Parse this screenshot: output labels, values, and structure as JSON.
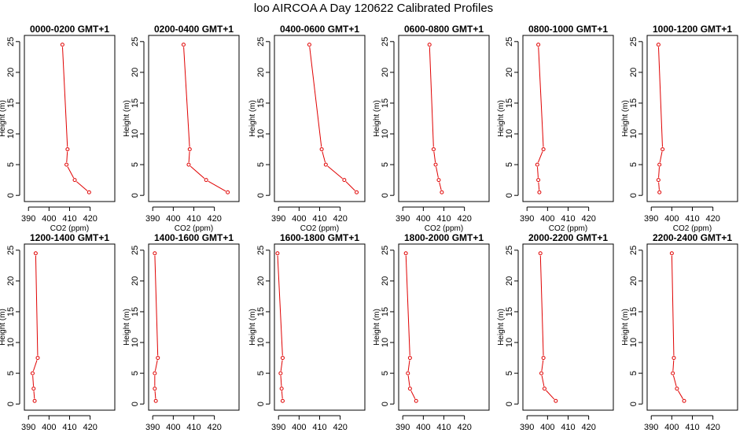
{
  "title": "loo AIRCOA A  Day 120622  Calibrated Profiles",
  "colors": {
    "series": "#e00000",
    "axis": "#000000"
  },
  "chart_data": [
    {
      "type": "line",
      "title": "0000-0200 GMT+1",
      "xlabel": "CO2 (ppm)",
      "ylabel": "Height (m)",
      "xlim": [
        388,
        432
      ],
      "ylim": [
        -1,
        26
      ],
      "xticks": [
        390,
        400,
        410,
        420
      ],
      "yticks": [
        0,
        5,
        10,
        15,
        20,
        25
      ],
      "series": [
        {
          "x": [
            419.5,
            412.5,
            408.5,
            409.0,
            406.5
          ],
          "y": [
            0.5,
            2.5,
            5.0,
            7.5,
            24.5
          ]
        }
      ]
    },
    {
      "type": "line",
      "title": "0200-0400 GMT+1",
      "xlabel": "CO2 (ppm)",
      "ylabel": "Height (m)",
      "xlim": [
        388,
        432
      ],
      "ylim": [
        -1,
        26
      ],
      "xticks": [
        390,
        400,
        410,
        420
      ],
      "yticks": [
        0,
        5,
        10,
        15,
        20,
        25
      ],
      "series": [
        {
          "x": [
            426.5,
            416.0,
            407.5,
            408.0,
            405.0
          ],
          "y": [
            0.5,
            2.5,
            5.0,
            7.5,
            24.5
          ]
        }
      ]
    },
    {
      "type": "line",
      "title": "0400-0600 GMT+1",
      "xlabel": "CO2 (ppm)",
      "ylabel": "Height (m)",
      "xlim": [
        388,
        432
      ],
      "ylim": [
        -1,
        26
      ],
      "xticks": [
        390,
        400,
        410,
        420
      ],
      "yticks": [
        0,
        5,
        10,
        15,
        20,
        25
      ],
      "series": [
        {
          "x": [
            428.0,
            422.0,
            413.0,
            411.0,
            405.0
          ],
          "y": [
            0.5,
            2.5,
            5.0,
            7.5,
            24.5
          ]
        }
      ]
    },
    {
      "type": "line",
      "title": "0600-0800 GMT+1",
      "xlabel": "CO2 (ppm)",
      "ylabel": "Height (m)",
      "xlim": [
        388,
        432
      ],
      "ylim": [
        -1,
        26
      ],
      "xticks": [
        390,
        400,
        410,
        420
      ],
      "yticks": [
        0,
        5,
        10,
        15,
        20,
        25
      ],
      "series": [
        {
          "x": [
            409.0,
            407.5,
            406.0,
            405.0,
            403.0
          ],
          "y": [
            0.5,
            2.5,
            5.0,
            7.5,
            24.5
          ]
        }
      ]
    },
    {
      "type": "line",
      "title": "0800-1000 GMT+1",
      "xlabel": "CO2 (ppm)",
      "ylabel": "Height (m)",
      "xlim": [
        388,
        432
      ],
      "ylim": [
        -1,
        26
      ],
      "xticks": [
        390,
        400,
        410,
        420
      ],
      "yticks": [
        0,
        5,
        10,
        15,
        20,
        25
      ],
      "series": [
        {
          "x": [
            396.0,
            395.5,
            395.0,
            398.0,
            395.5
          ],
          "y": [
            0.5,
            2.5,
            5.0,
            7.5,
            24.5
          ]
        }
      ]
    },
    {
      "type": "line",
      "title": "1000-1200 GMT+1",
      "xlabel": "CO2 (ppm)",
      "ylabel": "Height (m)",
      "xlim": [
        388,
        432
      ],
      "ylim": [
        -1,
        26
      ],
      "xticks": [
        390,
        400,
        410,
        420
      ],
      "yticks": [
        0,
        5,
        10,
        15,
        20,
        25
      ],
      "series": [
        {
          "x": [
            394.0,
            393.5,
            394.0,
            395.5,
            393.5
          ],
          "y": [
            0.5,
            2.5,
            5.0,
            7.5,
            24.5
          ]
        }
      ]
    },
    {
      "type": "line",
      "title": "1200-1400 GMT+1",
      "xlabel": "CO2 (ppm)",
      "ylabel": "Height (m)",
      "xlim": [
        388,
        432
      ],
      "ylim": [
        -1,
        26
      ],
      "xticks": [
        390,
        400,
        410,
        420
      ],
      "yticks": [
        0,
        5,
        10,
        15,
        20,
        25
      ],
      "series": [
        {
          "x": [
            393.0,
            392.5,
            392.0,
            394.5,
            393.5
          ],
          "y": [
            0.5,
            2.5,
            5.0,
            7.5,
            24.5
          ]
        }
      ]
    },
    {
      "type": "line",
      "title": "1400-1600 GMT+1",
      "xlabel": "CO2 (ppm)",
      "ylabel": "Height (m)",
      "xlim": [
        388,
        432
      ],
      "ylim": [
        -1,
        26
      ],
      "xticks": [
        390,
        400,
        410,
        420
      ],
      "yticks": [
        0,
        5,
        10,
        15,
        20,
        25
      ],
      "series": [
        {
          "x": [
            391.5,
            391.0,
            391.0,
            392.5,
            391.0
          ],
          "y": [
            0.5,
            2.5,
            5.0,
            7.5,
            24.5
          ]
        }
      ]
    },
    {
      "type": "line",
      "title": "1600-1800 GMT+1",
      "xlabel": "CO2 (ppm)",
      "ylabel": "Height (m)",
      "xlim": [
        388,
        432
      ],
      "ylim": [
        -1,
        26
      ],
      "xticks": [
        390,
        400,
        410,
        420
      ],
      "yticks": [
        0,
        5,
        10,
        15,
        20,
        25
      ],
      "series": [
        {
          "x": [
            392.0,
            391.5,
            391.0,
            392.0,
            389.5
          ],
          "y": [
            0.5,
            2.5,
            5.0,
            7.5,
            24.5
          ]
        }
      ]
    },
    {
      "type": "line",
      "title": "1800-2000 GMT+1",
      "xlabel": "CO2 (ppm)",
      "ylabel": "Height (m)",
      "xlim": [
        388,
        432
      ],
      "ylim": [
        -1,
        26
      ],
      "xticks": [
        390,
        400,
        410,
        420
      ],
      "yticks": [
        0,
        5,
        10,
        15,
        20,
        25
      ],
      "series": [
        {
          "x": [
            396.5,
            393.5,
            392.5,
            393.5,
            391.5
          ],
          "y": [
            0.5,
            2.5,
            5.0,
            7.5,
            24.5
          ]
        }
      ]
    },
    {
      "type": "line",
      "title": "2000-2200 GMT+1",
      "xlabel": "CO2 (ppm)",
      "ylabel": "Height (m)",
      "xlim": [
        388,
        432
      ],
      "ylim": [
        -1,
        26
      ],
      "xticks": [
        390,
        400,
        410,
        420
      ],
      "yticks": [
        0,
        5,
        10,
        15,
        20,
        25
      ],
      "series": [
        {
          "x": [
            404.0,
            398.5,
            397.0,
            398.0,
            396.5
          ],
          "y": [
            0.5,
            2.5,
            5.0,
            7.5,
            24.5
          ]
        }
      ]
    },
    {
      "type": "line",
      "title": "2200-2400 GMT+1",
      "xlabel": "CO2 (ppm)",
      "ylabel": "Height (m)",
      "xlim": [
        388,
        432
      ],
      "ylim": [
        -1,
        26
      ],
      "xticks": [
        390,
        400,
        410,
        420
      ],
      "yticks": [
        0,
        5,
        10,
        15,
        20,
        25
      ],
      "series": [
        {
          "x": [
            406.0,
            402.5,
            400.5,
            401.0,
            400.0
          ],
          "y": [
            0.5,
            2.5,
            5.0,
            7.5,
            24.5
          ]
        }
      ]
    }
  ]
}
